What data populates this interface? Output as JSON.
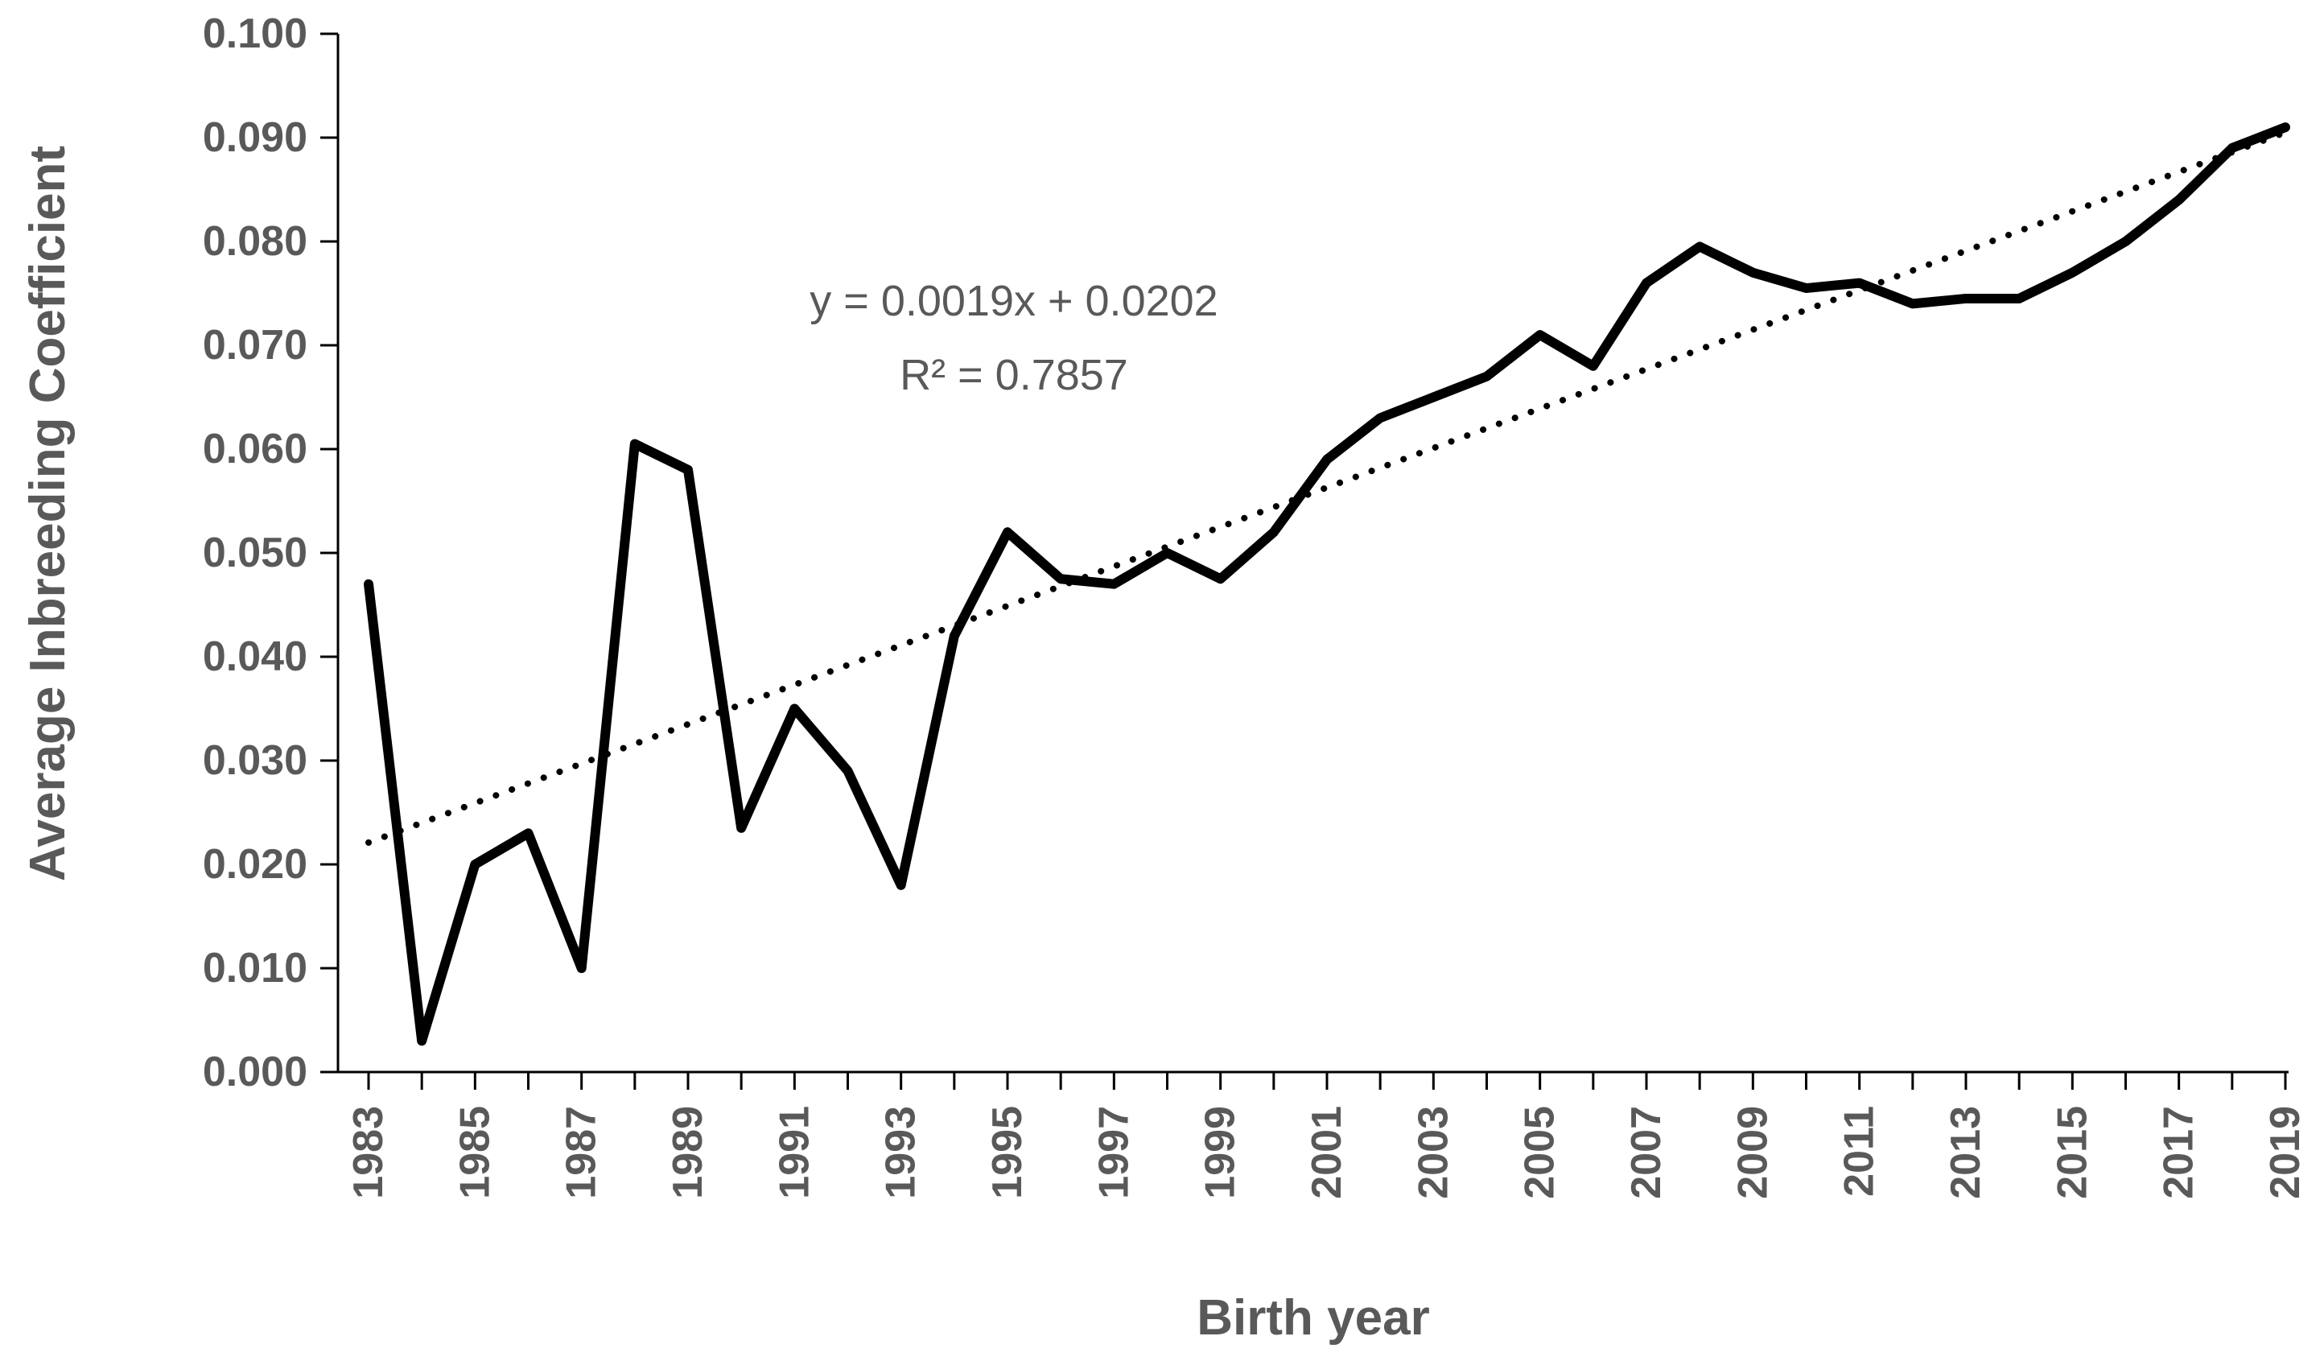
{
  "chart_data": {
    "type": "line",
    "title": "",
    "xlabel": "Birth year",
    "ylabel": "Average Inbreeding Coefficient",
    "x": [
      1983,
      1984,
      1985,
      1986,
      1987,
      1988,
      1989,
      1990,
      1991,
      1992,
      1993,
      1994,
      1995,
      1996,
      1997,
      1998,
      1999,
      2000,
      2001,
      2002,
      2003,
      2004,
      2005,
      2006,
      2007,
      2008,
      2009,
      2010,
      2011,
      2012,
      2013,
      2014,
      2015,
      2016,
      2017,
      2018,
      2019
    ],
    "series": [
      {
        "name": "Average inbreeding coefficient",
        "values": [
          0.047,
          0.003,
          0.02,
          0.023,
          0.01,
          0.0605,
          0.058,
          0.0235,
          0.035,
          0.029,
          0.018,
          0.042,
          0.052,
          0.0475,
          0.047,
          0.05,
          0.0475,
          0.052,
          0.059,
          0.063,
          0.065,
          0.067,
          0.071,
          0.068,
          0.076,
          0.0795,
          0.077,
          0.0755,
          0.076,
          0.074,
          0.0745,
          0.0745,
          0.077,
          0.08,
          0.084,
          0.089,
          0.091
        ]
      }
    ],
    "trendline": {
      "equation": "y = 0.0019x + 0.0202",
      "r_squared": "R² = 0.7857",
      "slope": 0.0019,
      "intercept": 0.0202,
      "style": "dotted"
    },
    "ylim": [
      0.0,
      0.1
    ],
    "ytick_step": 0.01,
    "ytick_decimals": 3,
    "xtick_label_step": 2,
    "grid": false,
    "legend_position": "none",
    "colors": {
      "series_line": "#000000",
      "trendline": "#000000",
      "axis": "#000000",
      "tick_label": "#595959",
      "axis_title": "#595959",
      "annotation": "#595959",
      "background": "#ffffff"
    }
  }
}
